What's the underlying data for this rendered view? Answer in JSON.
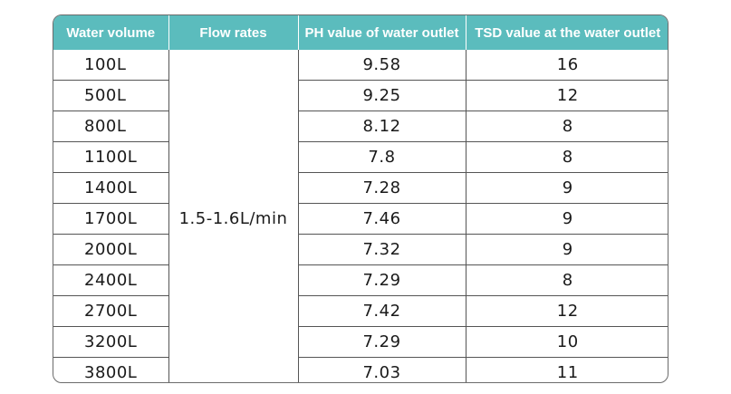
{
  "table": {
    "headers": [
      "Water volume",
      "Flow rates",
      "PH value of water outlet",
      "TSD value at the water outlet"
    ],
    "flow_rate": "1.5-1.6L/min",
    "rows": [
      {
        "volume": "100L",
        "ph": "9.58",
        "tsd": "16"
      },
      {
        "volume": "500L",
        "ph": "9.25",
        "tsd": "12"
      },
      {
        "volume": "800L",
        "ph": "8.12",
        "tsd": "8"
      },
      {
        "volume": "1100L",
        "ph": "7.8",
        "tsd": "8"
      },
      {
        "volume": "1400L",
        "ph": "7.28",
        "tsd": "9"
      },
      {
        "volume": "1700L",
        "ph": "7.46",
        "tsd": "9"
      },
      {
        "volume": "2000L",
        "ph": "7.32",
        "tsd": "9"
      },
      {
        "volume": "2400L",
        "ph": "7.29",
        "tsd": "8"
      },
      {
        "volume": "2700L",
        "ph": "7.42",
        "tsd": "12"
      },
      {
        "volume": "3200L",
        "ph": "7.29",
        "tsd": "10"
      },
      {
        "volume": "3800L",
        "ph": "7.03",
        "tsd": "11"
      }
    ]
  },
  "colors": {
    "header_bg": "#5bbcbd",
    "header_text": "#ffffff",
    "border": "#555555"
  }
}
